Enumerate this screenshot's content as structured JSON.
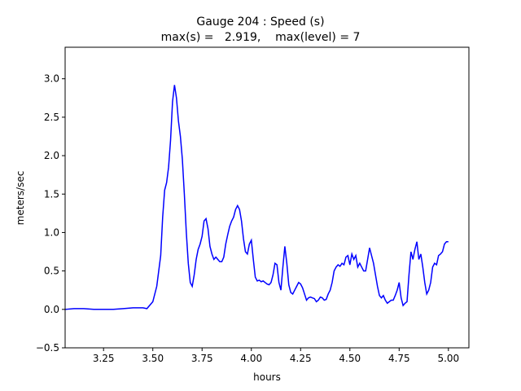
{
  "chart_data": {
    "type": "line",
    "title": "Gauge 204 : Speed (s)",
    "subtitle": "max(s) =   2.919,    max(level) = 7",
    "xlabel": "hours",
    "ylabel": "meters/sec",
    "color": "#0000ff",
    "xlim": [
      3.055,
      5.104
    ],
    "ylim": [
      -0.5,
      3.41
    ],
    "xticks": [
      3.25,
      {
        "value": 3.5,
        "label": "3.50"
      },
      3.75,
      {
        "value": 4.0,
        "label": "4.00"
      },
      4.25,
      {
        "value": 4.5,
        "label": "4.50"
      },
      4.75,
      {
        "value": 5.0,
        "label": "5.00"
      }
    ],
    "yticks": [
      {
        "value": -0.5,
        "label": "−0.5"
      },
      {
        "value": 0,
        "label": "0.0"
      },
      0.5,
      {
        "value": 1,
        "label": "1.0"
      },
      1.5,
      {
        "value": 2,
        "label": "2.0"
      },
      2.5,
      {
        "value": 3,
        "label": "3.0"
      }
    ],
    "x": [
      3.055,
      3.1,
      3.15,
      3.2,
      3.25,
      3.3,
      3.35,
      3.4,
      3.45,
      3.47,
      3.5,
      3.52,
      3.54,
      3.55,
      3.56,
      3.57,
      3.58,
      3.59,
      3.6,
      3.61,
      3.62,
      3.63,
      3.64,
      3.65,
      3.66,
      3.67,
      3.68,
      3.69,
      3.7,
      3.71,
      3.72,
      3.73,
      3.74,
      3.75,
      3.76,
      3.77,
      3.78,
      3.79,
      3.8,
      3.81,
      3.82,
      3.83,
      3.84,
      3.85,
      3.86,
      3.87,
      3.88,
      3.89,
      3.9,
      3.91,
      3.92,
      3.93,
      3.94,
      3.95,
      3.96,
      3.97,
      3.98,
      3.99,
      4.0,
      4.01,
      4.02,
      4.03,
      4.04,
      4.05,
      4.06,
      4.07,
      4.08,
      4.09,
      4.1,
      4.11,
      4.12,
      4.13,
      4.14,
      4.15,
      4.16,
      4.17,
      4.18,
      4.19,
      4.2,
      4.21,
      4.22,
      4.23,
      4.24,
      4.25,
      4.26,
      4.27,
      4.28,
      4.29,
      4.3,
      4.31,
      4.32,
      4.33,
      4.34,
      4.35,
      4.36,
      4.37,
      4.38,
      4.39,
      4.4,
      4.41,
      4.42,
      4.43,
      4.44,
      4.45,
      4.46,
      4.47,
      4.48,
      4.49,
      4.5,
      4.51,
      4.52,
      4.53,
      4.54,
      4.55,
      4.56,
      4.57,
      4.58,
      4.59,
      4.6,
      4.61,
      4.62,
      4.63,
      4.64,
      4.65,
      4.66,
      4.67,
      4.68,
      4.69,
      4.7,
      4.71,
      4.72,
      4.73,
      4.74,
      4.75,
      4.76,
      4.77,
      4.78,
      4.79,
      4.8,
      4.81,
      4.82,
      4.83,
      4.84,
      4.85,
      4.86,
      4.87,
      4.88,
      4.89,
      4.9,
      4.91,
      4.92,
      4.93,
      4.94,
      4.95,
      4.96,
      4.97,
      4.98,
      4.99,
      5.0
    ],
    "values": [
      0,
      0.01,
      0.01,
      0.0,
      0.0,
      0.0,
      0.01,
      0.02,
      0.02,
      0.01,
      0.1,
      0.3,
      0.7,
      1.2,
      1.55,
      1.65,
      1.85,
      2.2,
      2.7,
      2.919,
      2.75,
      2.45,
      2.25,
      1.95,
      1.5,
      1.0,
      0.6,
      0.35,
      0.3,
      0.45,
      0.65,
      0.78,
      0.85,
      0.95,
      1.15,
      1.18,
      1.05,
      0.82,
      0.72,
      0.65,
      0.68,
      0.65,
      0.62,
      0.62,
      0.68,
      0.85,
      0.97,
      1.08,
      1.15,
      1.2,
      1.3,
      1.35,
      1.3,
      1.15,
      0.92,
      0.75,
      0.72,
      0.85,
      0.9,
      0.65,
      0.42,
      0.37,
      0.38,
      0.36,
      0.37,
      0.35,
      0.33,
      0.32,
      0.35,
      0.45,
      0.6,
      0.58,
      0.35,
      0.25,
      0.55,
      0.82,
      0.6,
      0.32,
      0.22,
      0.2,
      0.25,
      0.3,
      0.35,
      0.33,
      0.28,
      0.2,
      0.12,
      0.15,
      0.16,
      0.15,
      0.14,
      0.1,
      0.12,
      0.16,
      0.15,
      0.12,
      0.13,
      0.2,
      0.25,
      0.35,
      0.5,
      0.55,
      0.58,
      0.56,
      0.6,
      0.58,
      0.68,
      0.7,
      0.58,
      0.72,
      0.65,
      0.7,
      0.55,
      0.6,
      0.55,
      0.5,
      0.5,
      0.65,
      0.8,
      0.7,
      0.6,
      0.45,
      0.3,
      0.18,
      0.15,
      0.18,
      0.12,
      0.08,
      0.1,
      0.12,
      0.12,
      0.18,
      0.25,
      0.35,
      0.15,
      0.05,
      0.08,
      0.1,
      0.45,
      0.75,
      0.65,
      0.78,
      0.88,
      0.65,
      0.72,
      0.55,
      0.35,
      0.2,
      0.25,
      0.35,
      0.55,
      0.6,
      0.58,
      0.7,
      0.72,
      0.75,
      0.85,
      0.88,
      0.88
    ]
  }
}
